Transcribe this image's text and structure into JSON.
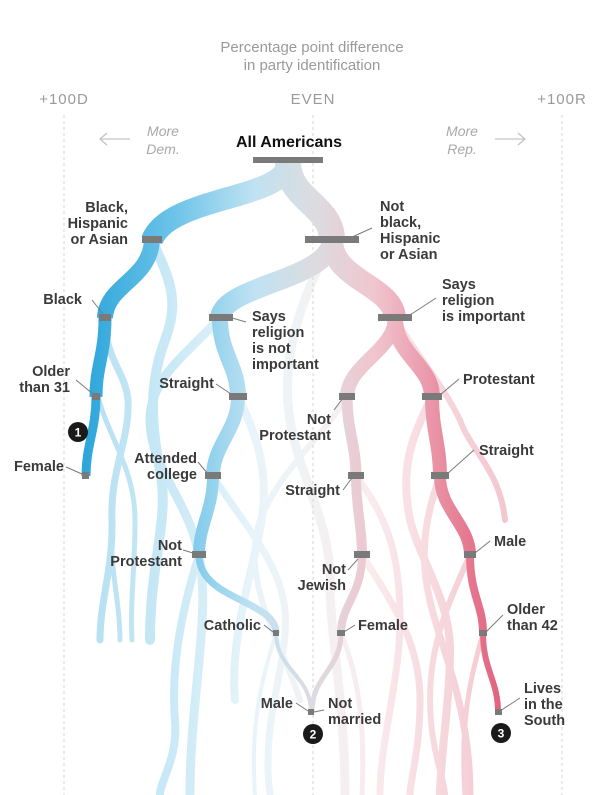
{
  "header": {
    "title_line1": "Percentage point difference",
    "title_line2": "in party identification",
    "axis_left": "+100D",
    "axis_center": "EVEN",
    "axis_right": "+100R",
    "direction_left": [
      "More",
      "Dem."
    ],
    "direction_right": [
      "More",
      "Rep."
    ]
  },
  "colors": {
    "dem": "#2aa7dc",
    "rep": "#dc4a6a",
    "neutral": "#c9c9cf",
    "marker": "#7a7a7a",
    "text": "#3a3a3a",
    "axis_gridline": "#cfcfcf"
  },
  "tree": {
    "root_label": "All Americans",
    "nodes": [
      {
        "id": "root",
        "lines": [
          "All Americans"
        ],
        "margin": 0
      },
      {
        "id": "bha",
        "lines": [
          "Black,",
          "Hispanic",
          "or Asian"
        ],
        "margin": -46
      },
      {
        "id": "nbha",
        "lines": [
          "Not",
          "black,",
          "Hispanic",
          "or Asian"
        ],
        "margin": 9
      },
      {
        "id": "black",
        "lines": [
          "Black"
        ],
        "margin": -70
      },
      {
        "id": "older31",
        "lines": [
          "Older",
          "than 31"
        ],
        "margin": -72
      },
      {
        "id": "female1",
        "lines": [
          "Female"
        ],
        "margin": -79
      },
      {
        "id": "relnot",
        "lines": [
          "Says",
          "religion",
          "is not",
          "important"
        ],
        "margin": -31
      },
      {
        "id": "straight1",
        "lines": [
          "Straight"
        ],
        "margin": -26
      },
      {
        "id": "college",
        "lines": [
          "Attended",
          "college"
        ],
        "margin": -34
      },
      {
        "id": "notprot1",
        "lines": [
          "Not",
          "Protestant"
        ],
        "margin": -39
      },
      {
        "id": "catholic",
        "lines": [
          "Catholic"
        ],
        "margin": -13
      },
      {
        "id": "male2",
        "lines": [
          "Male"
        ],
        "margin": -1
      },
      {
        "id": "relimp",
        "lines": [
          "Says",
          "religion",
          "is important"
        ],
        "margin": 29
      },
      {
        "id": "notprot2",
        "lines": [
          "Not",
          "Protestant"
        ],
        "margin": 11
      },
      {
        "id": "straight2",
        "lines": [
          "Straight"
        ],
        "margin": 14
      },
      {
        "id": "notjewish",
        "lines": [
          "Not",
          "Jewish"
        ],
        "margin": 17
      },
      {
        "id": "female2",
        "lines": [
          "Female"
        ],
        "margin": 9
      },
      {
        "id": "notmarried",
        "lines": [
          "Not",
          "married"
        ],
        "margin": -1
      },
      {
        "id": "protestant",
        "lines": [
          "Protestant"
        ],
        "margin": 40
      },
      {
        "id": "straight3",
        "lines": [
          "Straight"
        ],
        "margin": 42
      },
      {
        "id": "male3",
        "lines": [
          "Male"
        ],
        "margin": 51
      },
      {
        "id": "older42",
        "lines": [
          "Older",
          "than 42"
        ],
        "margin": 56
      },
      {
        "id": "south",
        "lines": [
          "Lives",
          "in the",
          "South"
        ],
        "margin": 63
      }
    ],
    "callouts": [
      {
        "id": "c1",
        "text": "1"
      },
      {
        "id": "c2",
        "text": "2"
      },
      {
        "id": "c3",
        "text": "3"
      }
    ]
  }
}
